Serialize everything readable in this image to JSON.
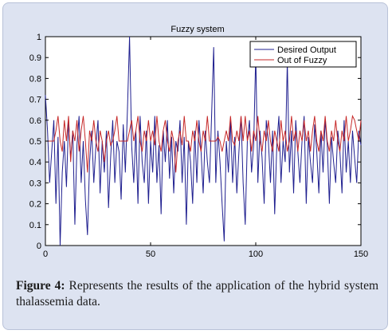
{
  "chart_data": {
    "type": "line",
    "title": "Fuzzy system",
    "xlabel": "",
    "ylabel": "",
    "xlim": [
      0,
      150
    ],
    "ylim": [
      0,
      1
    ],
    "xticks": [
      "0",
      "50",
      "100",
      "150"
    ],
    "yticks": [
      "0",
      "0.1",
      "0.2",
      "0.3",
      "0.4",
      "0.5",
      "0.6",
      "0.7",
      "0.8",
      "0.9",
      "1"
    ],
    "grid": false,
    "legend_position": "top-right",
    "series": [
      {
        "name": "Desired Output",
        "color": "#1f1f8f",
        "values": [
          0.72,
          0.55,
          0.3,
          0.45,
          0.6,
          0.2,
          0.52,
          0.0,
          0.35,
          0.5,
          0.28,
          0.6,
          0.42,
          0.55,
          0.1,
          0.48,
          0.62,
          0.3,
          0.5,
          0.22,
          0.05,
          0.4,
          0.55,
          0.3,
          0.48,
          0.6,
          0.25,
          0.5,
          0.35,
          0.55,
          0.18,
          0.42,
          0.6,
          0.3,
          0.5,
          0.45,
          0.22,
          0.58,
          0.35,
          0.65,
          1.0,
          0.48,
          0.3,
          0.55,
          0.2,
          0.62,
          0.4,
          0.3,
          0.55,
          0.2,
          0.5,
          0.35,
          0.62,
          0.3,
          0.48,
          0.15,
          0.55,
          0.4,
          0.6,
          0.32,
          0.52,
          0.25,
          0.5,
          0.45,
          0.6,
          0.3,
          0.52,
          0.1,
          0.5,
          0.4,
          0.2,
          0.55,
          0.3,
          0.6,
          0.45,
          0.25,
          0.55,
          0.4,
          0.3,
          0.62,
          0.95,
          0.3,
          0.55,
          0.4,
          0.2,
          0.02,
          0.5,
          0.35,
          0.6,
          0.3,
          0.52,
          0.25,
          0.45,
          0.62,
          0.3,
          0.1,
          0.5,
          0.6,
          0.35,
          0.48,
          0.92,
          0.3,
          0.55,
          0.42,
          0.2,
          0.6,
          0.5,
          0.3,
          0.55,
          0.15,
          0.48,
          0.62,
          0.3,
          0.5,
          0.4,
          0.88,
          0.35,
          0.55,
          0.25,
          0.6,
          0.45,
          0.3,
          0.5,
          0.62,
          0.2,
          0.52,
          0.4,
          0.3,
          0.58,
          0.45,
          0.25,
          0.55,
          0.35,
          0.6,
          0.48,
          0.2,
          0.52,
          0.4,
          0.3,
          0.55,
          0.45,
          0.25,
          0.6,
          0.35,
          0.5,
          0.3,
          0.55,
          0.42,
          0.3,
          0.55,
          0.48
        ]
      },
      {
        "name": "Out of Fuzzy",
        "color": "#c62828",
        "values": [
          0.5,
          0.5,
          0.5,
          0.5,
          0.5,
          0.55,
          0.62,
          0.5,
          0.45,
          0.6,
          0.5,
          0.62,
          0.4,
          0.55,
          0.5,
          0.6,
          0.45,
          0.55,
          0.62,
          0.5,
          0.35,
          0.55,
          0.5,
          0.6,
          0.5,
          0.45,
          0.55,
          0.5,
          0.4,
          0.5,
          0.55,
          0.48,
          0.5,
          0.55,
          0.62,
          0.5,
          0.5,
          0.5,
          0.5,
          0.5,
          0.55,
          0.6,
          0.5,
          0.55,
          0.62,
          0.5,
          0.45,
          0.55,
          0.5,
          0.6,
          0.5,
          0.55,
          0.48,
          0.62,
          0.5,
          0.45,
          0.55,
          0.6,
          0.5,
          0.45,
          0.55,
          0.5,
          0.35,
          0.5,
          0.55,
          0.48,
          0.62,
          0.5,
          0.5,
          0.45,
          0.55,
          0.5,
          0.6,
          0.5,
          0.45,
          0.55,
          0.5,
          0.62,
          0.5,
          0.5,
          0.5,
          0.5,
          0.52,
          0.5,
          0.45,
          0.5,
          0.55,
          0.5,
          0.62,
          0.5,
          0.48,
          0.55,
          0.5,
          0.62,
          0.5,
          0.62,
          0.5,
          0.55,
          0.45,
          0.55,
          0.5,
          0.62,
          0.5,
          0.45,
          0.55,
          0.5,
          0.6,
          0.5,
          0.45,
          0.55,
          0.5,
          0.45,
          0.6,
          0.5,
          0.55,
          0.45,
          0.5,
          0.62,
          0.5,
          0.55,
          0.45,
          0.55,
          0.5,
          0.6,
          0.5,
          0.55,
          0.45,
          0.55,
          0.62,
          0.5,
          0.45,
          0.55,
          0.5,
          0.62,
          0.5,
          0.45,
          0.55,
          0.5,
          0.6,
          0.5,
          0.45,
          0.55,
          0.5,
          0.62,
          0.5,
          0.55,
          0.62,
          0.6,
          0.55,
          0.5,
          0.6
        ]
      }
    ]
  },
  "caption": {
    "label": "Figure 4:",
    "text": " Represents the results of the application of the hybrid system thalassemia data."
  }
}
